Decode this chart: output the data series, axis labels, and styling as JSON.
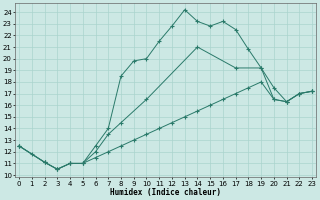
{
  "xlabel": "Humidex (Indice chaleur)",
  "bg_color": "#cce8e4",
  "grid_color": "#aad4ce",
  "line_color": "#2a7a6a",
  "series1_x": [
    0,
    1,
    2,
    3,
    4,
    5,
    6,
    7,
    8,
    9,
    10,
    11,
    12,
    13,
    14,
    15,
    16,
    17,
    18,
    19,
    20,
    21,
    22,
    23
  ],
  "series1_y": [
    12.5,
    11.8,
    11.1,
    10.5,
    11.0,
    11.0,
    12.5,
    14.0,
    18.5,
    19.8,
    20.0,
    21.5,
    22.8,
    24.2,
    23.2,
    22.8,
    23.2,
    22.5,
    20.8,
    19.2,
    17.5,
    16.3,
    17.0,
    17.2
  ],
  "series2_x": [
    0,
    2,
    3,
    4,
    5,
    6,
    7,
    8,
    10,
    14,
    17,
    19,
    20,
    21,
    22,
    23
  ],
  "series2_y": [
    12.5,
    11.1,
    10.5,
    11.0,
    11.0,
    12.0,
    13.5,
    14.5,
    16.5,
    21.0,
    19.2,
    19.2,
    16.5,
    16.3,
    17.0,
    17.2
  ],
  "series3_x": [
    0,
    2,
    3,
    4,
    5,
    6,
    7,
    8,
    9,
    10,
    11,
    12,
    13,
    14,
    15,
    16,
    17,
    18,
    19,
    20,
    21,
    22,
    23
  ],
  "series3_y": [
    12.5,
    11.1,
    10.5,
    11.0,
    11.0,
    11.5,
    12.0,
    12.5,
    13.0,
    13.5,
    14.0,
    14.5,
    15.0,
    15.5,
    16.0,
    16.5,
    17.0,
    17.5,
    18.0,
    16.5,
    16.3,
    17.0,
    17.2
  ],
  "xlim": [
    -0.3,
    23.3
  ],
  "ylim": [
    9.8,
    24.8
  ],
  "yticks": [
    10,
    11,
    12,
    13,
    14,
    15,
    16,
    17,
    18,
    19,
    20,
    21,
    22,
    23,
    24
  ],
  "xticks": [
    0,
    1,
    2,
    3,
    4,
    5,
    6,
    7,
    8,
    9,
    10,
    11,
    12,
    13,
    14,
    15,
    16,
    17,
    18,
    19,
    20,
    21,
    22,
    23
  ]
}
